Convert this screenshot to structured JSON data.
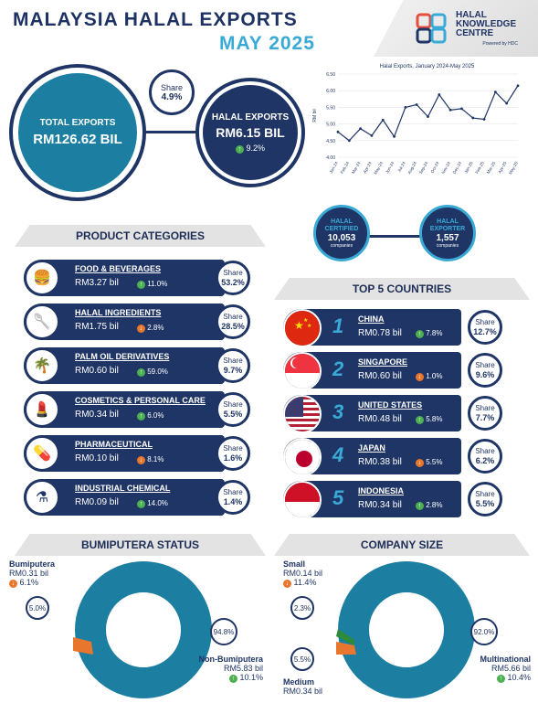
{
  "header": {
    "title": "MALAYSIA HALAL EXPORTS",
    "period": "MAY 2025",
    "logo_line1": "HALAL",
    "logo_line2": "KNOWLEDGE",
    "logo_line3": "CENTRE",
    "logo_powered": "Powered by HDC"
  },
  "summary": {
    "total_label": "TOTAL EXPORTS",
    "total_value": "RM126.62 BIL",
    "share_label": "Share",
    "share_value": "4.9%",
    "halal_label": "HALAL EXPORTS",
    "halal_value": "RM6.15 BIL",
    "halal_growth": "9.2%"
  },
  "chart_data": {
    "type": "line",
    "title": "Halal Exports, January 2024-May 2025",
    "ylabel": "RM bil",
    "ylim": [
      4.0,
      6.5
    ],
    "yticks": [
      "6.50",
      "6.00",
      "5.50",
      "5.00",
      "4.50",
      "4.00"
    ],
    "categories": [
      "Jan-24",
      "Feb-24",
      "Mar-24",
      "Apr-24",
      "May-24",
      "Jun-24",
      "Jul-24",
      "Aug-24",
      "Sep-24",
      "Oct-24",
      "Nov-24",
      "Dec-24",
      "Jan-25",
      "Feb-25",
      "Mar-25",
      "Apr-25",
      "May-25"
    ],
    "values": [
      4.76,
      4.5,
      4.86,
      4.65,
      5.12,
      4.62,
      5.5,
      5.58,
      5.22,
      5.88,
      5.42,
      5.46,
      5.18,
      5.14,
      5.96,
      5.62,
      6.15
    ],
    "color": "#1f3566"
  },
  "certified": {
    "c_label1": "HALAL",
    "c_label2": "CERTIFIED",
    "c_value": "10,053",
    "c_unit": "companies",
    "e_label1": "HALAL",
    "e_label2": "EXPORTER",
    "e_value": "1,557",
    "e_unit": "companies"
  },
  "sections": {
    "products": "PRODUCT CATEGORIES",
    "countries": "TOP 5 COUNTRIES",
    "bumi": "BUMIPUTERA STATUS",
    "company": "COMPANY SIZE"
  },
  "products": [
    {
      "name": "FOOD & BEVERAGES",
      "value": "RM3.27 bil",
      "growth": "11.0%",
      "dir": "up",
      "share_label": "Share",
      "share": "53.2%",
      "icon": "food-icon"
    },
    {
      "name": "HALAL INGREDIENTS",
      "value": "RM1.75 bil",
      "growth": "2.8%",
      "dir": "down",
      "share_label": "Share",
      "share": "28.5%",
      "icon": "ingredients-icon"
    },
    {
      "name": "PALM OIL DERIVATIVES",
      "value": "RM0.60 bil",
      "growth": "59.0%",
      "dir": "up",
      "share_label": "Share",
      "share": "9.7%",
      "icon": "palm-tree-icon"
    },
    {
      "name": "COSMETICS & PERSONAL CARE",
      "value": "RM0.34 bil",
      "growth": "6.0%",
      "dir": "up",
      "share_label": "Share",
      "share": "5.5%",
      "icon": "cosmetics-icon"
    },
    {
      "name": "PHARMACEUTICAL",
      "value": "RM0.10 bil",
      "growth": "8.1%",
      "dir": "down",
      "share_label": "Share",
      "share": "1.6%",
      "icon": "pharmacy-icon"
    },
    {
      "name": "INDUSTRIAL CHEMICAL",
      "value": "RM0.09 bil",
      "growth": "14.0%",
      "dir": "up",
      "share_label": "Share",
      "share": "1.4%",
      "icon": "flask-icon"
    }
  ],
  "countries": [
    {
      "rank": "1",
      "name": "CHINA",
      "value": "RM0.78 bil",
      "growth": "7.8%",
      "dir": "up",
      "share_label": "Share",
      "share": "12.7%"
    },
    {
      "rank": "2",
      "name": "SINGAPORE",
      "value": "RM0.60 bil",
      "growth": "1.0%",
      "dir": "down",
      "share_label": "Share",
      "share": "9.6%"
    },
    {
      "rank": "3",
      "name": "UNITED STATES",
      "value": "RM0.48 bil",
      "growth": "5.8%",
      "dir": "up",
      "share_label": "Share",
      "share": "7.7%"
    },
    {
      "rank": "4",
      "name": "JAPAN",
      "value": "RM0.38 bil",
      "growth": "5.5%",
      "dir": "down",
      "share_label": "Share",
      "share": "6.2%"
    },
    {
      "rank": "5",
      "name": "INDONESIA",
      "value": "RM0.34 bil",
      "growth": "2.8%",
      "dir": "up",
      "share_label": "Share",
      "share": "5.5%"
    }
  ],
  "bumi": {
    "b_name": "Bumiputera",
    "b_value": "RM0.31 bil",
    "b_growth": "6.1%",
    "b_pct": "5.0%",
    "n_name": "Non-Bumiputera",
    "n_value": "RM5.83 bil",
    "n_growth": "10.1%",
    "n_pct": "94.8%"
  },
  "company": {
    "s_name": "Small",
    "s_value": "RM0.14 bil",
    "s_growth": "11.4%",
    "s_pct": "2.3%",
    "m_name": "Medium",
    "m_value": "RM0.34 bil",
    "m_pct": "5.5%",
    "l_name": "Multinational",
    "l_value": "RM5.66 bil",
    "l_growth": "10.4%",
    "l_pct": "92.0%"
  }
}
